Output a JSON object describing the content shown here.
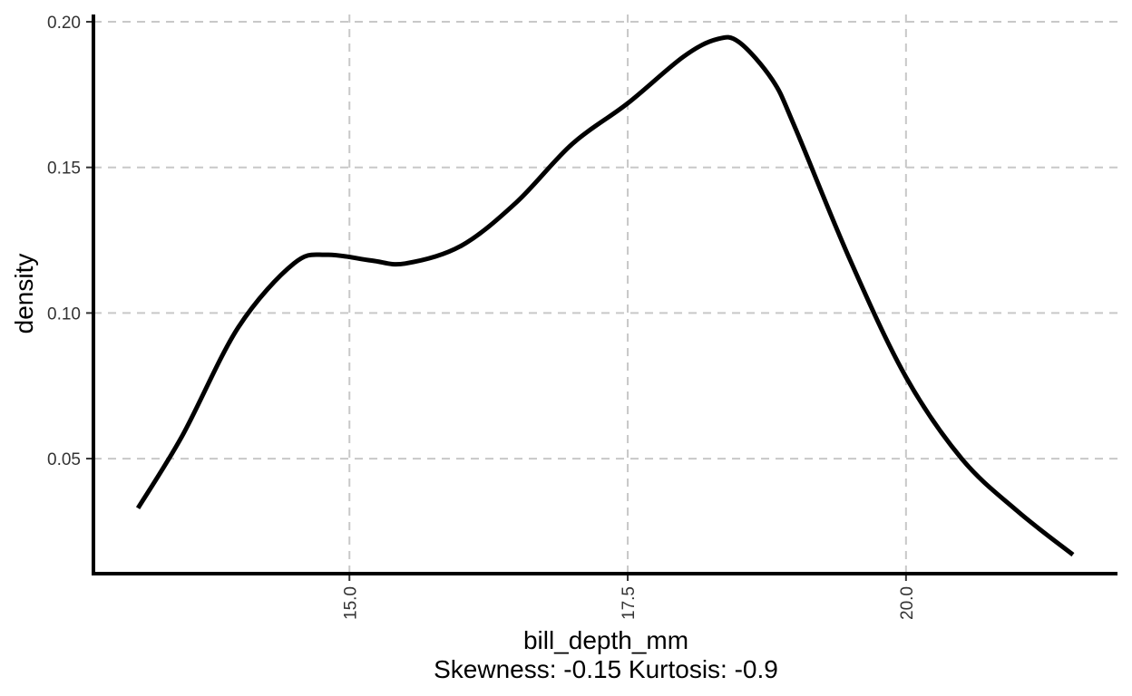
{
  "chart_data": {
    "type": "line",
    "title": "",
    "xlabel": "bill_depth_mm",
    "ylabel": "density",
    "caption": "Skewness: -0.15 Kurtosis: -0.9",
    "xlim": [
      12.7,
      21.9
    ],
    "ylim": [
      0.0105,
      0.2025
    ],
    "x_ticks": [
      15.0,
      17.5,
      20.0
    ],
    "x_tick_labels": [
      "15.0",
      "17.5",
      "20.0"
    ],
    "y_ticks": [
      0.05,
      0.1,
      0.15,
      0.2
    ],
    "y_tick_labels": [
      "0.05",
      "0.10",
      "0.15",
      "0.20"
    ],
    "grid": true,
    "series": [
      {
        "color": "#000000",
        "x": [
          13.1,
          13.5,
          14.0,
          14.5,
          14.8,
          15.2,
          15.5,
          16.0,
          16.5,
          17.0,
          17.5,
          18.0,
          18.3,
          18.5,
          18.8,
          19.0,
          19.5,
          20.0,
          20.5,
          21.0,
          21.5
        ],
        "y": [
          0.033,
          0.058,
          0.095,
          0.117,
          0.12,
          0.118,
          0.117,
          0.123,
          0.138,
          0.158,
          0.172,
          0.188,
          0.194,
          0.193,
          0.18,
          0.164,
          0.118,
          0.078,
          0.05,
          0.032,
          0.017
        ]
      }
    ]
  }
}
